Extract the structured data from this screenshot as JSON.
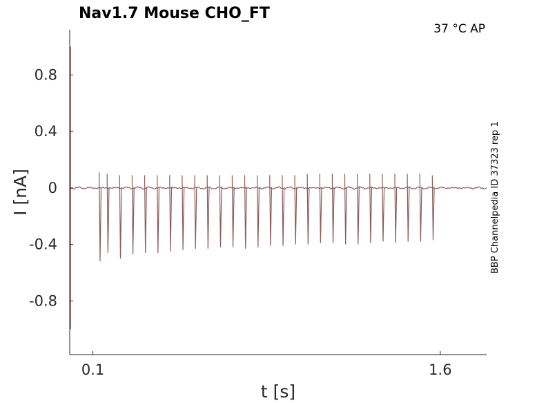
{
  "chart_data": {
    "type": "line",
    "title": "Nav1.7  Mouse  CHO_FT",
    "annotation": "37 °C  AP",
    "side_label": "BBP Channelpedia ID 37323 rep 1",
    "xlabel": "t [s]",
    "ylabel": "I [nA]",
    "xlim": [
      0.0,
      1.8
    ],
    "ylim": [
      -1.18,
      1.12
    ],
    "x_ticks": [
      0.1,
      1.6
    ],
    "x_tick_labels": [
      "0.1",
      "1.6"
    ],
    "y_ticks": [
      0.8,
      0.4,
      0,
      -0.4,
      -0.8
    ],
    "y_tick_labels": [
      "0.8",
      "0.4",
      "0",
      "-0.4",
      "-0.8"
    ],
    "grid": false,
    "line_color": "#8b5a5a",
    "baseline": 0.0,
    "spike_times": [
      0.131,
      0.165,
      0.219,
      0.273,
      0.327,
      0.381,
      0.435,
      0.489,
      0.543,
      0.597,
      0.651,
      0.705,
      0.759,
      0.813,
      0.867,
      0.921,
      0.975,
      1.029,
      1.083,
      1.137,
      1.191,
      1.245,
      1.299,
      1.353,
      1.407,
      1.461,
      1.515,
      1.569
    ],
    "spike_peaks": [
      0.11,
      0.1,
      0.09,
      0.09,
      0.09,
      0.09,
      0.09,
      0.09,
      0.09,
      0.09,
      0.09,
      0.09,
      0.09,
      0.09,
      0.09,
      0.09,
      0.09,
      0.1,
      0.1,
      0.1,
      0.1,
      0.1,
      0.1,
      0.1,
      0.1,
      0.1,
      0.1,
      0.09
    ],
    "spike_troughs": [
      -0.52,
      -0.46,
      -0.5,
      -0.47,
      -0.46,
      -0.46,
      -0.45,
      -0.44,
      -0.43,
      -0.43,
      -0.42,
      -0.42,
      -0.43,
      -0.42,
      -0.41,
      -0.41,
      -0.4,
      -0.4,
      -0.39,
      -0.39,
      -0.4,
      -0.4,
      -0.39,
      -0.38,
      -0.39,
      -0.38,
      -0.38,
      -0.37
    ]
  }
}
